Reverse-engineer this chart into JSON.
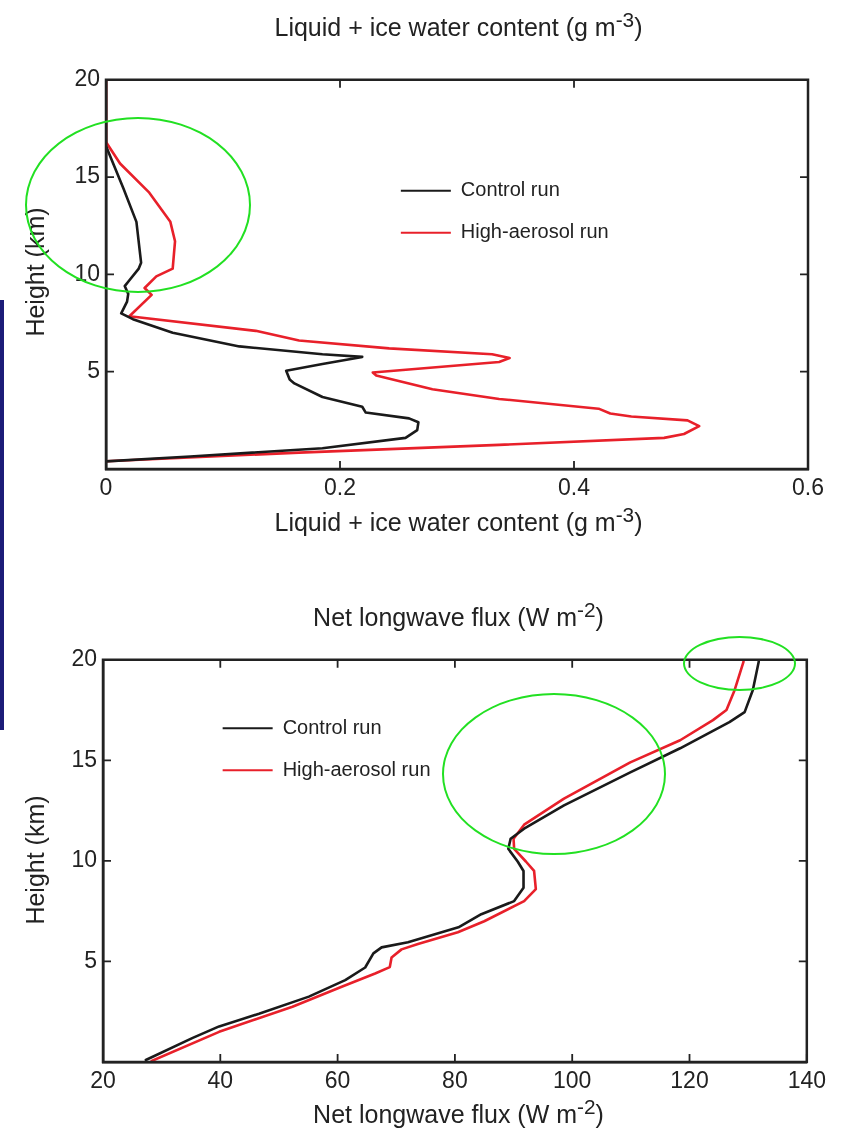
{
  "chart_data": [
    {
      "type": "line",
      "title": "Liquid + ice water content (g m$^{-3}$)",
      "xlabel": "Liquid + ice water content (g m$^{-3}$)",
      "ylabel": "Height (km)",
      "xlim": [
        0,
        0.6
      ],
      "xticks": [
        0,
        0.2,
        0.4,
        0.6
      ],
      "ylim": [
        0,
        20
      ],
      "yticks": [
        5,
        10,
        15,
        20
      ],
      "legend": "top",
      "grid": false,
      "marker": "none",
      "line_style": "solid",
      "series": [
        {
          "name": "Control run",
          "color": "#1a1a1a",
          "x": [
            0,
            0,
            0.015,
            0.026,
            0.03,
            0.028,
            0.02,
            0.016,
            0.019,
            0.018,
            0.013,
            0.023,
            0.057,
            0.114,
            0.185,
            0.219,
            0.185,
            0.154,
            0.157,
            0.161,
            0.185,
            0.219,
            0.222,
            0.259,
            0.267,
            0.266,
            0.256,
            0.185,
            0.072,
            0
          ],
          "values": [
            20,
            16.6,
            14.4,
            12.7,
            10.6,
            10.3,
            9.7,
            9.4,
            9.0,
            8.6,
            8.0,
            7.7,
            7.0,
            6.3,
            5.9,
            5.76,
            5.4,
            5.05,
            4.6,
            4.4,
            3.7,
            3.2,
            2.9,
            2.6,
            2.4,
            2.0,
            1.6,
            1.07,
            0.64,
            0.39
          ]
        },
        {
          "name": "High-aerosol run",
          "color": "#e8202a",
          "x": [
            0,
            0,
            0.012,
            0.037,
            0.055,
            0.059,
            0.057,
            0.043,
            0.033,
            0.039,
            0.02,
            0.128,
            0.165,
            0.242,
            0.33,
            0.345,
            0.336,
            0.228,
            0.231,
            0.279,
            0.336,
            0.421,
            0.431,
            0.449,
            0.497,
            0.507,
            0.494,
            0.477,
            0.336,
            0.165,
            0
          ],
          "values": [
            20,
            16.8,
            15.7,
            14.2,
            12.7,
            11.7,
            10.3,
            9.9,
            9.3,
            8.95,
            7.85,
            7.1,
            6.6,
            6.2,
            5.9,
            5.7,
            5.5,
            4.96,
            4.8,
            4.1,
            3.6,
            3.1,
            2.85,
            2.7,
            2.5,
            2.2,
            1.8,
            1.6,
            1.24,
            0.84,
            0.4
          ]
        }
      ]
    },
    {
      "type": "line",
      "title": "Net longwave flux (W m$^{-2}$)",
      "xlabel": "Net longwave flux (W m$^{-2}$)",
      "ylabel": "Height (km)",
      "xlim": [
        20,
        140
      ],
      "xticks": [
        20,
        40,
        60,
        80,
        100,
        120,
        140
      ],
      "ylim": [
        0,
        20
      ],
      "yticks": [
        5,
        10,
        15,
        20
      ],
      "legend": "top left",
      "grid": false,
      "marker": "none",
      "line_style": "solid",
      "series": [
        {
          "name": "Control run",
          "color": "#1a1a1a",
          "x": [
            27.3,
            35.3,
            39.8,
            46.6,
            55.1,
            61.3,
            64.7,
            66.1,
            67.5,
            72.0,
            80.6,
            84.5,
            90.1,
            91.7,
            91.7,
            90.7,
            89.1,
            89.5,
            91.8,
            98.6,
            109.9,
            118.4,
            126.8,
            129.4,
            130.8,
            131.8,
            131.8
          ],
          "values": [
            0.1,
            1.2,
            1.77,
            2.4,
            3.25,
            4.07,
            4.7,
            5.4,
            5.7,
            5.95,
            6.7,
            7.35,
            8.0,
            8.66,
            9.5,
            9.97,
            10.6,
            11.1,
            11.6,
            12.76,
            14.4,
            15.6,
            16.9,
            17.4,
            18.5,
            19.9,
            20
          ]
        },
        {
          "name": "High-aerosol run",
          "color": "#e8202a",
          "x": [
            28.3,
            39.8,
            52.3,
            60.7,
            66.4,
            68.9,
            69.2,
            70.9,
            73.7,
            80.5,
            85.0,
            91.8,
            93.8,
            93.5,
            92.1,
            90.1,
            90.0,
            91.8,
            98.6,
            109.9,
            118.4,
            124.0,
            126.3,
            127.7,
            129.2,
            129.2
          ],
          "values": [
            0.05,
            1.5,
            2.75,
            3.74,
            4.4,
            4.72,
            5.2,
            5.6,
            5.87,
            6.45,
            7.0,
            8.0,
            8.6,
            9.5,
            9.97,
            10.6,
            11.1,
            11.8,
            13.1,
            14.9,
            16.0,
            17.0,
            17.5,
            18.5,
            19.9,
            20
          ]
        }
      ]
    }
  ]
}
